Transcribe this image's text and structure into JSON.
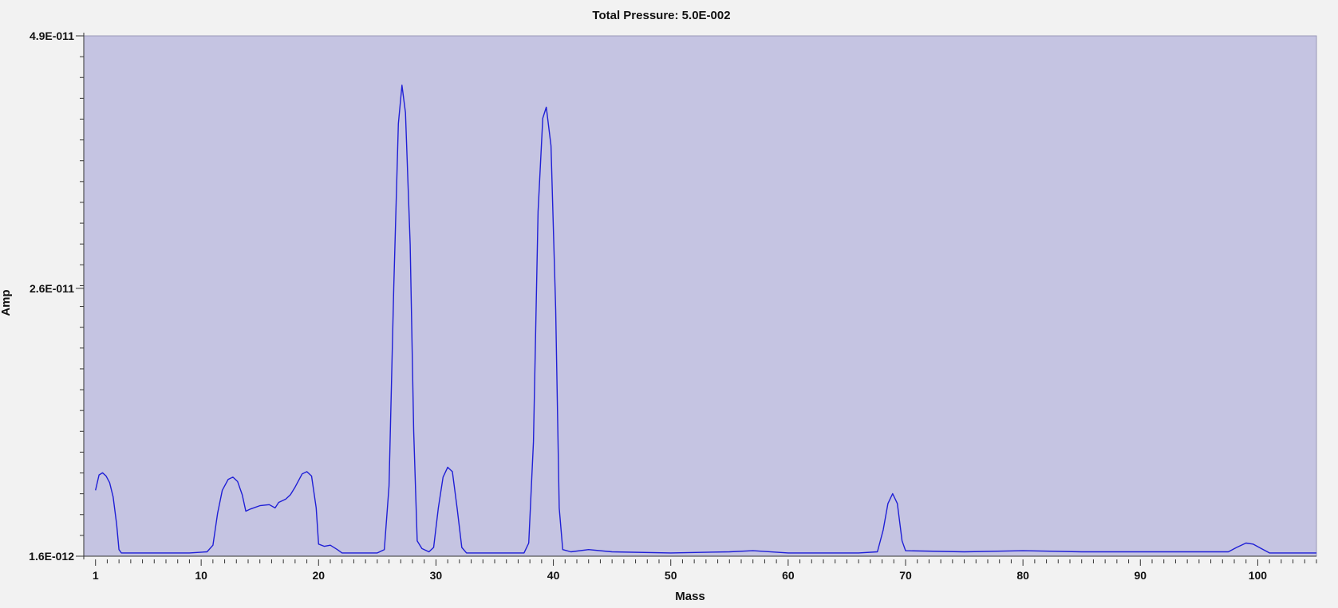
{
  "chart_data": {
    "type": "line",
    "title": "Total Pressure: 5.0E-002",
    "xlabel": "Mass",
    "ylabel": "Amp",
    "xlim": [
      0,
      105
    ],
    "ylim": [
      1.6e-12,
      4.9e-11
    ],
    "y_ticks": [
      {
        "value": 4.9e-11,
        "label": "4.9E-011"
      },
      {
        "value": 2.6e-11,
        "label": "2.6E-011"
      },
      {
        "value": 1.6e-12,
        "label": "1.6E-012"
      }
    ],
    "x_ticks": [
      1,
      10,
      20,
      30,
      40,
      50,
      60,
      70,
      80,
      90,
      100
    ],
    "grid": false,
    "legend": "none",
    "colors": {
      "plot_background": "#c5c4e2",
      "plot_border": "#9a99b8",
      "line": "#1f1fd6",
      "page_background": "#f2f2f2"
    },
    "series": [
      {
        "values": [
          [
            1.0,
            7.6e-12
          ],
          [
            1.3,
            9e-12
          ],
          [
            1.6,
            9.2e-12
          ],
          [
            1.9,
            8.9e-12
          ],
          [
            2.2,
            8.3e-12
          ],
          [
            2.5,
            7e-12
          ],
          [
            2.8,
            4.5e-12
          ],
          [
            3.0,
            2.2e-12
          ],
          [
            3.2,
            1.9e-12
          ],
          [
            5,
            1.9e-12
          ],
          [
            7,
            1.9e-12
          ],
          [
            9,
            1.9e-12
          ],
          [
            10.5,
            2e-12
          ],
          [
            11.0,
            2.6e-12
          ],
          [
            11.4,
            5.5e-12
          ],
          [
            11.8,
            7.6e-12
          ],
          [
            12.3,
            8.6e-12
          ],
          [
            12.7,
            8.8e-12
          ],
          [
            13.1,
            8.4e-12
          ],
          [
            13.5,
            7.2e-12
          ],
          [
            13.8,
            5.7e-12
          ],
          [
            14.2,
            5.9e-12
          ],
          [
            15.0,
            6.2e-12
          ],
          [
            15.8,
            6.3e-12
          ],
          [
            16.3,
            6e-12
          ],
          [
            16.6,
            6.5e-12
          ],
          [
            17.2,
            6.8e-12
          ],
          [
            17.6,
            7.2e-12
          ],
          [
            18.0,
            7.9e-12
          ],
          [
            18.6,
            9.1e-12
          ],
          [
            19.0,
            9.3e-12
          ],
          [
            19.4,
            8.9e-12
          ],
          [
            19.8,
            6e-12
          ],
          [
            20.0,
            2.7e-12
          ],
          [
            20.5,
            2.5e-12
          ],
          [
            21.0,
            2.6e-12
          ],
          [
            21.6,
            2.2e-12
          ],
          [
            22.0,
            1.9e-12
          ],
          [
            25.0,
            1.9e-12
          ],
          [
            25.6,
            2.2e-12
          ],
          [
            26.0,
            8e-12
          ],
          [
            26.4,
            2.6e-11
          ],
          [
            26.8,
            4.1e-11
          ],
          [
            27.1,
            4.45e-11
          ],
          [
            27.4,
            4.2e-11
          ],
          [
            27.8,
            3e-11
          ],
          [
            28.1,
            1.3e-11
          ],
          [
            28.4,
            3e-12
          ],
          [
            28.8,
            2.3e-12
          ],
          [
            29.4,
            2e-12
          ],
          [
            29.8,
            2.4e-12
          ],
          [
            30.2,
            6e-12
          ],
          [
            30.6,
            8.8e-12
          ],
          [
            31.0,
            9.7e-12
          ],
          [
            31.4,
            9.3e-12
          ],
          [
            31.8,
            6e-12
          ],
          [
            32.2,
            2.4e-12
          ],
          [
            32.6,
            1.9e-12
          ],
          [
            37.5,
            1.9e-12
          ],
          [
            37.9,
            2.8e-12
          ],
          [
            38.3,
            1.2e-11
          ],
          [
            38.7,
            3.3e-11
          ],
          [
            39.1,
            4.15e-11
          ],
          [
            39.4,
            4.25e-11
          ],
          [
            39.8,
            3.9e-11
          ],
          [
            40.2,
            2.4e-11
          ],
          [
            40.5,
            6e-12
          ],
          [
            40.8,
            2.2e-12
          ],
          [
            41.5,
            2e-12
          ],
          [
            43.0,
            2.2e-12
          ],
          [
            45,
            2e-12
          ],
          [
            50,
            1.9e-12
          ],
          [
            55,
            2e-12
          ],
          [
            57,
            2.1e-12
          ],
          [
            60,
            1.9e-12
          ],
          [
            66,
            1.9e-12
          ],
          [
            67.6,
            2e-12
          ],
          [
            68.1,
            4e-12
          ],
          [
            68.5,
            6.4e-12
          ],
          [
            68.9,
            7.3e-12
          ],
          [
            69.3,
            6.4e-12
          ],
          [
            69.7,
            3e-12
          ],
          [
            70.0,
            2.1e-12
          ],
          [
            75,
            2e-12
          ],
          [
            80,
            2.1e-12
          ],
          [
            85,
            2e-12
          ],
          [
            90,
            2e-12
          ],
          [
            97.5,
            2e-12
          ],
          [
            98.2,
            2.4e-12
          ],
          [
            99.0,
            2.8e-12
          ],
          [
            99.6,
            2.7e-12
          ],
          [
            100.3,
            2.3e-12
          ],
          [
            101.0,
            1.9e-12
          ],
          [
            105,
            1.9e-12
          ]
        ]
      }
    ]
  }
}
